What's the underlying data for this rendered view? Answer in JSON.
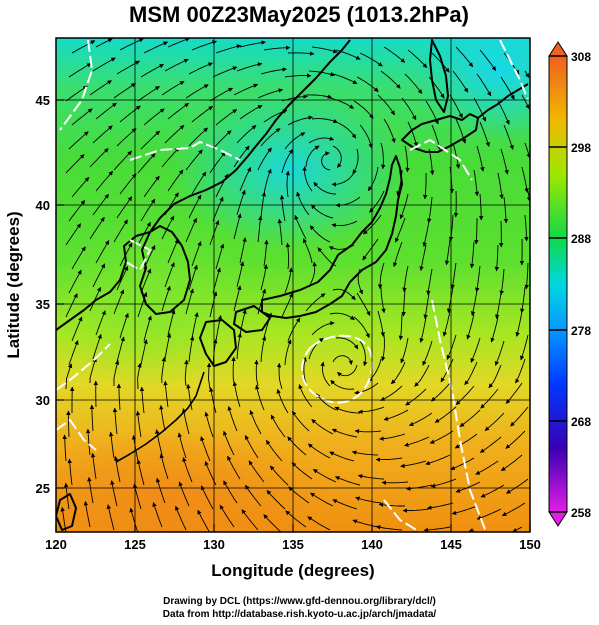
{
  "title": "MSM 00Z23May2025 (1013.2hPa)",
  "xlabel": "Longitude (degrees)",
  "ylabel": "Latitude  (degrees)",
  "x_ticks": [
    120,
    125,
    130,
    135,
    140,
    145,
    150
  ],
  "y_ticks": [
    25,
    30,
    35,
    40,
    45
  ],
  "colorbar": {
    "min": 258,
    "max": 308,
    "ticks": [
      258,
      268,
      278,
      288,
      298,
      308
    ],
    "colors": [
      "#e21ee6",
      "#3a00b4",
      "#0030ff",
      "#00d8e0",
      "#10d84a",
      "#9ee800",
      "#f0b800",
      "#f06020"
    ]
  },
  "map": {
    "lon_range": [
      120,
      150
    ],
    "lat_range": [
      22.4,
      47.6
    ],
    "field": "temperature (K) with streamlines",
    "cyclone_centers": [
      {
        "name": "low-northeast-asia",
        "lon": 137.3,
        "lat": 41.5
      },
      {
        "name": "low-south-of-japan",
        "lon": 138.2,
        "lat": 30.8
      }
    ]
  },
  "credits": {
    "line1": "Drawing by DCL (https://www.gfd-dennou.org/library/dcl/)",
    "line2": "Data from http://database.rish.kyoto-u.ac.jp/arch/jmadata/"
  }
}
